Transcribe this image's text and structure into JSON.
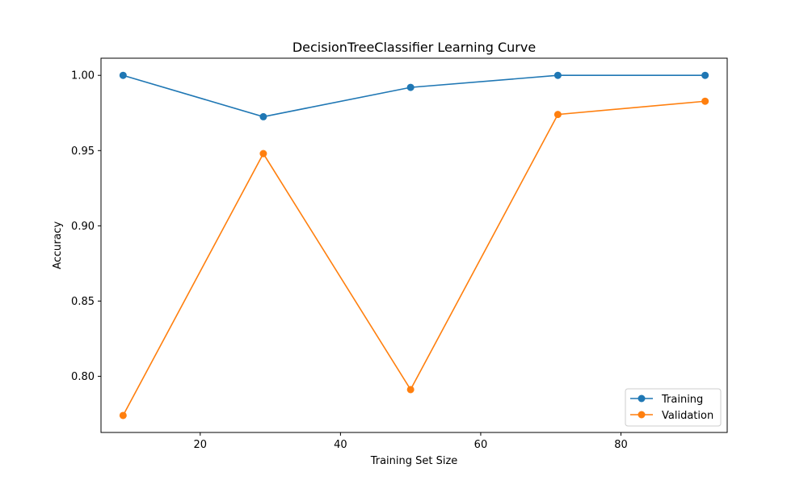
{
  "chart_data": {
    "type": "line",
    "title": "DecisionTreeClassifier Learning Curve",
    "xlabel": "Training Set Size",
    "ylabel": "Accuracy",
    "xlim": [
      5.85,
      95.15
    ],
    "ylim": [
      0.7627,
      1.0114
    ],
    "xticks": [
      20,
      40,
      60,
      80
    ],
    "yticks": [
      0.8,
      0.85,
      0.9,
      0.95,
      1.0
    ],
    "x": [
      9,
      29,
      50,
      71,
      92
    ],
    "series": [
      {
        "name": "Training",
        "color": "#1f77b4",
        "values": [
          1.0,
          0.9725,
          0.992,
          1.0,
          1.0
        ]
      },
      {
        "name": "Validation",
        "color": "#ff7f0e",
        "values": [
          0.774,
          0.948,
          0.7912,
          0.974,
          0.9828
        ]
      }
    ],
    "legend": "lower right",
    "grid": false
  }
}
